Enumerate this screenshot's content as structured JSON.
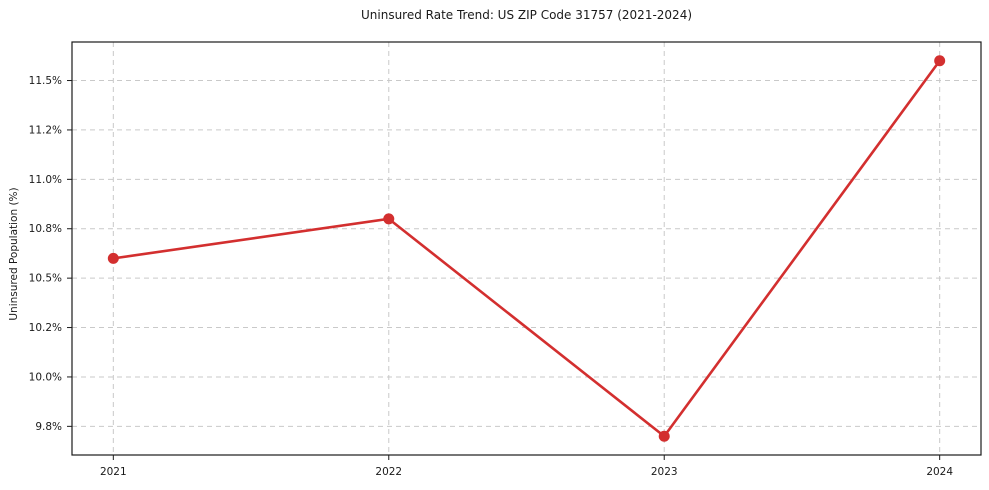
{
  "chart_data": {
    "type": "line",
    "title": "Uninsured Rate Trend: US ZIP Code 31757 (2021-2024)",
    "xlabel": "",
    "ylabel": "Uninsured Population (%)",
    "categories": [
      "2021",
      "2022",
      "2023",
      "2024"
    ],
    "values": [
      10.6,
      10.8,
      9.7,
      11.6
    ],
    "unit": "%",
    "ylim": [
      9.605,
      11.695
    ],
    "xlim_index": [
      -0.15,
      3.15
    ],
    "yticks": {
      "values": [
        9.75,
        10.0,
        10.25,
        10.5,
        10.75,
        11.0,
        11.25,
        11.5
      ],
      "labels": [
        "9.8%",
        "10.0%",
        "10.2%",
        "10.5%",
        "10.8%",
        "11.0%",
        "11.2%",
        "11.5%"
      ]
    },
    "grid": true,
    "grid_style": "dashed",
    "legend": "none",
    "marker": "circle",
    "colors": {
      "line": "#d32f2f",
      "grid": "#c9c9c9",
      "axis": "#1a1a1a",
      "text": "#1a1a1a",
      "background": "#ffffff"
    }
  }
}
